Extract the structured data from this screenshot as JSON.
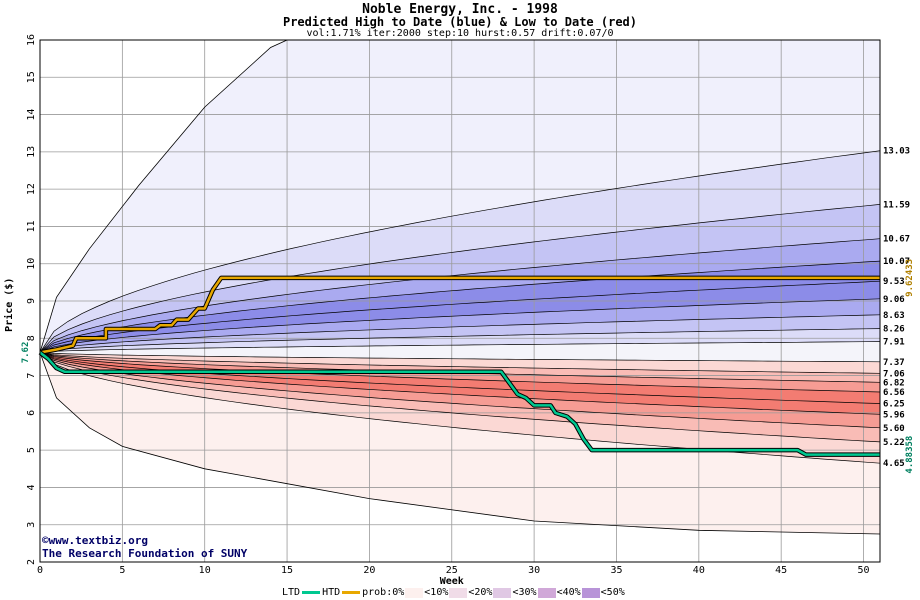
{
  "title": "Noble Energy, Inc. - 1998",
  "subtitle": "Predicted High to Date (blue) &  Low to Date (red)",
  "params": "vol:1.71% iter:2000 step:10 hurst:0.57 drift:0.07/0",
  "credit": {
    "line1": "©www.textbiz.org",
    "line2": "The Research Foundation of SUNY"
  },
  "legend": {
    "ltd": "LTD",
    "htd": "HTD",
    "prob": "prob:0%",
    "p10": "<10%",
    "p20": "<20%",
    "p30": "<30%",
    "p40": "<40%",
    "p50": "<50%"
  },
  "colors": {
    "ltd_line": "#00c890",
    "htd_line": "#e8a800",
    "blue_bands": [
      "#f0f0fc",
      "#dcdcf8",
      "#c4c4f4",
      "#aaaaf0",
      "#8c8ce8"
    ],
    "red_bands": [
      "#fdf0ee",
      "#fbd8d4",
      "#f9bcb6",
      "#f69c94",
      "#f37c72"
    ]
  },
  "chart_data": {
    "type": "line",
    "xlabel": "Week",
    "ylabel": "Price ($)",
    "xlim": [
      0,
      51
    ],
    "ylim": [
      2,
      16
    ],
    "xticks": [
      0,
      5,
      10,
      15,
      20,
      25,
      30,
      35,
      40,
      45,
      50
    ],
    "yticks": [
      2,
      3,
      4,
      5,
      6,
      7,
      8,
      9,
      10,
      11,
      12,
      13,
      14,
      15,
      16
    ],
    "grid": true,
    "start_price": 7.62,
    "start_label": "7.62",
    "htd_end_label": "9.62433",
    "ltd_end_label": "4.88358",
    "right_labels": [
      "13.03",
      "11.59",
      "10.67",
      "10.07",
      "9.53",
      "9.06",
      "8.63",
      "8.26",
      "7.91",
      "7.37",
      "7.06",
      "6.82",
      "6.56",
      "6.25",
      "5.96",
      "5.60",
      "5.22",
      "4.65"
    ],
    "upper_envelope": [
      [
        0,
        7.62
      ],
      [
        1,
        9.1
      ],
      [
        3,
        10.4
      ],
      [
        6,
        12.1
      ],
      [
        10,
        14.2
      ],
      [
        14,
        15.8
      ],
      [
        15,
        16
      ]
    ],
    "lower_envelope": [
      [
        0,
        7.62
      ],
      [
        1,
        6.4
      ],
      [
        3,
        5.6
      ],
      [
        5,
        5.1
      ],
      [
        10,
        4.5
      ],
      [
        15,
        4.1
      ],
      [
        20,
        3.7
      ],
      [
        30,
        3.1
      ],
      [
        40,
        2.85
      ],
      [
        51,
        2.75
      ]
    ],
    "blue_quantiles": [
      13.03,
      11.59,
      10.67,
      10.07,
      9.53,
      9.06,
      8.63,
      8.26,
      7.91
    ],
    "red_quantiles": [
      7.37,
      7.06,
      6.82,
      6.56,
      6.25,
      5.96,
      5.6,
      5.22,
      4.65
    ],
    "series": [
      {
        "name": "HTD",
        "x": [
          0,
          1,
          2,
          2.2,
          4,
          4,
          7,
          7.3,
          8,
          8.3,
          9,
          9.6,
          10,
          10.5,
          11,
          51
        ],
        "y": [
          7.62,
          7.7,
          7.8,
          8.0,
          8.0,
          8.25,
          8.25,
          8.35,
          8.35,
          8.5,
          8.5,
          8.8,
          8.8,
          9.3,
          9.62,
          9.62
        ]
      },
      {
        "name": "LTD",
        "x": [
          0,
          0.5,
          1,
          1.5,
          28,
          28.5,
          29,
          29.5,
          30,
          30.3,
          31,
          31.3,
          32,
          32.5,
          33,
          33.5,
          46,
          46.5,
          51
        ],
        "y": [
          7.62,
          7.45,
          7.2,
          7.1,
          7.1,
          6.8,
          6.5,
          6.4,
          6.2,
          6.2,
          6.2,
          6.0,
          5.9,
          5.7,
          5.3,
          5.0,
          5.0,
          4.88,
          4.88
        ]
      }
    ]
  }
}
